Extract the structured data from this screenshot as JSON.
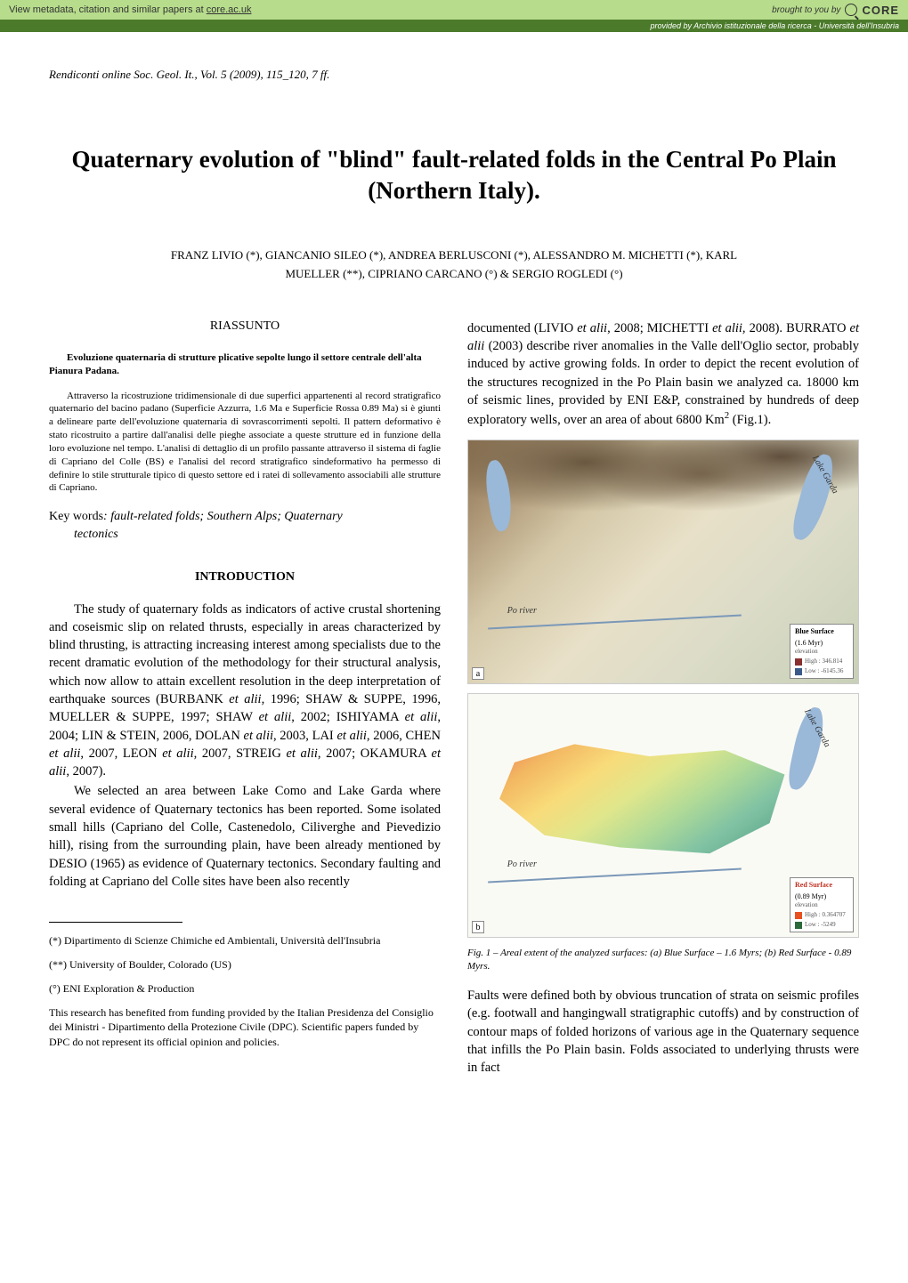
{
  "banner": {
    "left_text": "View metadata, citation and similar papers at",
    "link_text": "core.ac.uk",
    "brought_by": "brought to you by",
    "logo": "CORE",
    "sub_text": "provided by",
    "sub_link": "Archivio istituzionale della ricerca - Università dell'Insubria"
  },
  "journal_ref": "Rendiconti online Soc. Geol. It., Vol. 5 (2009), 115_120, 7 ff.",
  "title": "Quaternary evolution of \"blind\" fault-related folds in the Central Po Plain (Northern Italy).",
  "authors_line1": "FRANZ LIVIO (*), GIANCANIO SILEO (*), ANDREA BERLUSCONI (*), ALESSANDRO M. MICHETTI (*), KARL",
  "authors_line2": "MUELLER (**), CIPRIANO CARCANO (°)  & SERGIO ROGLEDI (°)",
  "riassunto": {
    "title": "RIASSUNTO",
    "subtitle": "Evoluzione quaternaria di strutture plicative sepolte lungo il settore centrale dell'alta Pianura Padana.",
    "body": "Attraverso la ricostruzione tridimensionale di due superfici appartenenti al record stratigrafico quaternario del bacino padano (Superficie Azzurra, 1.6 Ma e Superficie Rossa 0.89 Ma) si è giunti a delineare parte dell'evoluzione quaternaria di sovrascorrimenti sepolti. Il pattern deformativo è stato ricostruito a partire dall'analisi delle pieghe associate a queste strutture ed in funzione della loro evoluzione nel tempo. L'analisi di dettaglio di un profilo passante attraverso il sistema di faglie di Capriano del Colle (BS) e l'analisi del record stratigrafico sindeformativo ha permesso di definire lo stile strutturale tipico di questo settore ed i ratei di sollevamento associabili alle strutture di Capriano."
  },
  "keywords": {
    "label": "Key words",
    "text": ": fault-related folds; Southern Alps; Quaternary tectonics"
  },
  "introduction": {
    "title": "INTRODUCTION",
    "para1_a": "The study of quaternary folds as indicators of active crustal shortening and coseismic slip on related thrusts, especially in areas characterized by blind thrusting, is attracting increasing interest among specialists due to the recent dramatic evolution of the methodology for their structural analysis, which now allow to attain excellent resolution in the deep interpretation of earthquake sources (BURBANK ",
    "para1_b": ", 1996; SHAW & SUPPE, 1996, MUELLER & SUPPE, 1997; SHAW ",
    "para1_c": ", 2002; ISHIYAMA ",
    "para1_d": ", 2004; LIN & STEIN, 2006, DOLAN ",
    "para1_e": ", 2003, LAI ",
    "para1_f": ", 2006, CHEN ",
    "para1_g": ", 2007, LEON ",
    "para1_h": ", 2007, STREIG ",
    "para1_i": ", 2007; OKAMURA ",
    "para1_j": ", 2007).",
    "para2": "We selected an area between Lake Como and Lake Garda where several evidence of Quaternary tectonics has been reported. Some isolated small hills (Capriano del Colle, Castenedolo, Ciliverghe and Pievedizio hill), rising from the surrounding plain,  have been already mentioned by DESIO (1965) as evidence of Quaternary tectonics. Secondary faulting and folding at Capriano del Colle sites have been also recently",
    "etalii": "et alii"
  },
  "right_col": {
    "para1_a": "documented (LIVIO ",
    "para1_b": ", 2008; MICHETTI ",
    "para1_c": " 2008). BURRATO ",
    "para1_d": " (2003) describe river anomalies in the Valle dell'Oglio sector, probably induced by active growing folds. In order to depict the recent evolution of the structures recognized in the Po Plain basin we analyzed ca. 18000 km of seismic lines, provided by ENI E&P, constrained by hundreds of deep exploratory wells, over an area of about 6800 Km",
    "para1_e": " (Fig.1).",
    "etalii": "et alii",
    "etalii_comma": "et alii,",
    "sup2": "2"
  },
  "figure1": {
    "map_a": {
      "lake_label": "Lake Garda",
      "river_label": "Po river",
      "legend_title": "Blue Surface",
      "legend_age": "(1.6 Myr)",
      "legend_elev": "elevation",
      "legend_high": "High : 346.814",
      "legend_low": "Low : -6145.36",
      "corner": "a"
    },
    "map_b": {
      "lake_label": "Lake Garda",
      "river_label": "Po river",
      "legend_title": "Red Surface",
      "legend_age": "(0.89 Myr)",
      "legend_elev": "elevation",
      "legend_high": "High : 0.364707",
      "legend_low": "Low : -5249",
      "corner": "b"
    },
    "caption_prefix": "Fig. 1",
    "caption_text": " – Areal extent of the analyzed surfaces: (a) Blue Surface – 1.6 Myrs; (b) Red Surface - 0.89 Myrs."
  },
  "right_para2": "Faults were defined both by obvious truncation of strata on seismic profiles (e.g. footwall and hangingwall stratigraphic cutoffs) and by construction of contour maps of folded horizons of various age in the Quaternary sequence that infills the Po Plain basin. Folds associated to underlying thrusts were in fact",
  "footnotes": {
    "f1": "(*) Dipartimento di Scienze Chimiche ed Ambientali, Università dell'Insubria",
    "f2": "(**) University of Boulder, Colorado (US)",
    "f3": "(°) ENI Exploration & Production",
    "f4": "This research has benefited from funding provided by the Italian Presidenza del Consiglio dei Ministri - Dipartimento della Protezione Civile (DPC). Scientific papers funded by DPC do not represent its official opinion and policies."
  }
}
